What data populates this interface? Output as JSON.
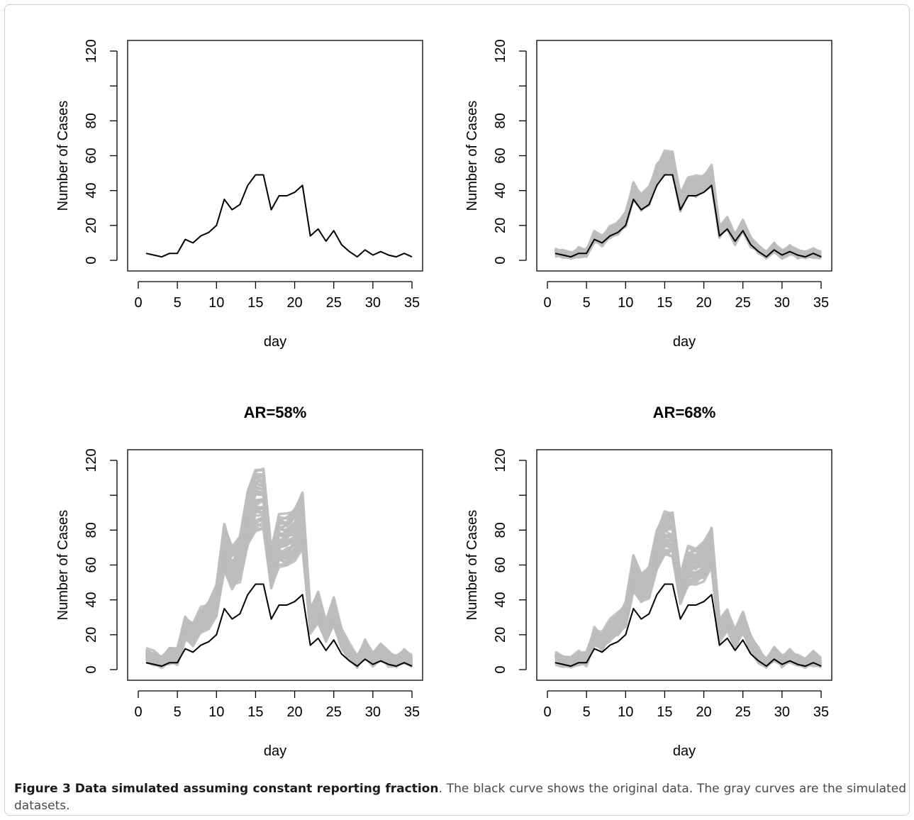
{
  "caption": {
    "label": "Figure 3",
    "title": "Data simulated assuming constant reporting fraction",
    "text": ". The black curve shows the original data. The gray curves are the simulated datasets."
  },
  "colors": {
    "original": "#000000",
    "simulated": "#bdbdbd"
  },
  "chart_data": [
    {
      "type": "line",
      "title": "",
      "xlabel": "day",
      "ylabel": "Number of Cases",
      "xlim": [
        0,
        35
      ],
      "ylim": [
        0,
        120
      ],
      "xticks": [
        0,
        5,
        10,
        15,
        20,
        25,
        30,
        35
      ],
      "yticks": [
        0,
        20,
        40,
        60,
        80,
        120
      ],
      "scale": 1.0,
      "band_spread": 0,
      "x": [
        1,
        2,
        3,
        4,
        5,
        6,
        7,
        8,
        9,
        10,
        11,
        12,
        13,
        14,
        15,
        16,
        17,
        18,
        19,
        20,
        21,
        22,
        23,
        24,
        25,
        26,
        27,
        28,
        29,
        30,
        31,
        32,
        33,
        34,
        35
      ],
      "series": [
        {
          "values": [
            4,
            3,
            2,
            4,
            4,
            12,
            10,
            14,
            16,
            20,
            35,
            29,
            32,
            43,
            49,
            49,
            29,
            37,
            37,
            39,
            43,
            14,
            18,
            11,
            17,
            9,
            5,
            2,
            6,
            3,
            5,
            3,
            2,
            4,
            2
          ]
        }
      ],
      "grid": false,
      "legend": "none"
    },
    {
      "type": "line",
      "title": "",
      "xlabel": "day",
      "ylabel": "Number of Cases",
      "xlim": [
        0,
        35
      ],
      "ylim": [
        0,
        120
      ],
      "xticks": [
        0,
        5,
        10,
        15,
        20,
        25,
        30,
        35
      ],
      "yticks": [
        0,
        20,
        40,
        60,
        80,
        120
      ],
      "scale": 1.15,
      "band_spread": 10,
      "x": [
        1,
        2,
        3,
        4,
        5,
        6,
        7,
        8,
        9,
        10,
        11,
        12,
        13,
        14,
        15,
        16,
        17,
        18,
        19,
        20,
        21,
        22,
        23,
        24,
        25,
        26,
        27,
        28,
        29,
        30,
        31,
        32,
        33,
        34,
        35
      ],
      "series": [
        {
          "values": [
            4,
            3,
            2,
            4,
            4,
            12,
            10,
            14,
            16,
            20,
            35,
            29,
            32,
            43,
            49,
            49,
            29,
            37,
            37,
            39,
            43,
            14,
            18,
            11,
            17,
            9,
            5,
            2,
            6,
            3,
            5,
            3,
            2,
            4,
            2
          ]
        }
      ],
      "grid": false,
      "legend": "none"
    },
    {
      "type": "line",
      "title": "AR=58%",
      "xlabel": "day",
      "ylabel": "Number of Cases",
      "xlim": [
        0,
        35
      ],
      "ylim": [
        0,
        120
      ],
      "xticks": [
        0,
        5,
        10,
        15,
        20,
        25,
        30,
        35
      ],
      "yticks": [
        0,
        20,
        40,
        60,
        80,
        120
      ],
      "scale": 2.0,
      "band_spread": 30,
      "x": [
        1,
        2,
        3,
        4,
        5,
        6,
        7,
        8,
        9,
        10,
        11,
        12,
        13,
        14,
        15,
        16,
        17,
        18,
        19,
        20,
        21,
        22,
        23,
        24,
        25,
        26,
        27,
        28,
        29,
        30,
        31,
        32,
        33,
        34,
        35
      ],
      "series": [
        {
          "values": [
            4,
            3,
            2,
            4,
            4,
            12,
            10,
            14,
            16,
            20,
            35,
            29,
            32,
            43,
            49,
            49,
            29,
            37,
            37,
            39,
            43,
            14,
            18,
            11,
            17,
            9,
            5,
            2,
            6,
            3,
            5,
            3,
            2,
            4,
            2
          ]
        }
      ],
      "grid": false,
      "legend": "none"
    },
    {
      "type": "line",
      "title": "AR=68%",
      "xlabel": "day",
      "ylabel": "Number of Cases",
      "xlim": [
        0,
        35
      ],
      "ylim": [
        0,
        120
      ],
      "xticks": [
        0,
        5,
        10,
        15,
        20,
        25,
        30,
        35
      ],
      "yticks": [
        0,
        20,
        40,
        60,
        80,
        120
      ],
      "scale": 1.6,
      "band_spread": 22,
      "x": [
        1,
        2,
        3,
        4,
        5,
        6,
        7,
        8,
        9,
        10,
        11,
        12,
        13,
        14,
        15,
        16,
        17,
        18,
        19,
        20,
        21,
        22,
        23,
        24,
        25,
        26,
        27,
        28,
        29,
        30,
        31,
        32,
        33,
        34,
        35
      ],
      "series": [
        {
          "values": [
            4,
            3,
            2,
            4,
            4,
            12,
            10,
            14,
            16,
            20,
            35,
            29,
            32,
            43,
            49,
            49,
            29,
            37,
            37,
            39,
            43,
            14,
            18,
            11,
            17,
            9,
            5,
            2,
            6,
            3,
            5,
            3,
            2,
            4,
            2
          ]
        }
      ],
      "grid": false,
      "legend": "none"
    }
  ]
}
